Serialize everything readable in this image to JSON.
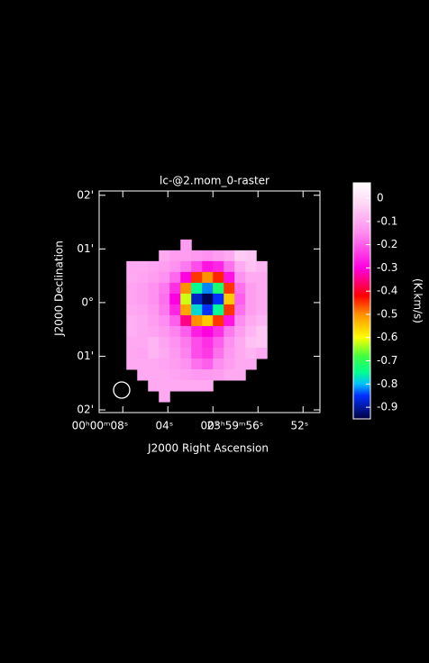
{
  "chart_data": {
    "type": "heatmap",
    "title": "lc-@2.mom_0-raster",
    "xlabel": "J2000 Right Ascension",
    "ylabel": "J2000 Declination",
    "colorbar_label": "(K.km/s)",
    "xlim": [
      10.1,
      -9.5
    ],
    "ylim": [
      -2.05,
      2.08
    ],
    "xticks": [
      {
        "value": 8,
        "label": "00ʰ00ᵐ08ˢ"
      },
      {
        "value": 4,
        "label": "04ˢ"
      },
      {
        "value": 0,
        "label": "00ˢ"
      },
      {
        "value": -4,
        "label": "23ʰ59ᵐ56ˢ"
      },
      {
        "value": -8,
        "label": "52ˢ"
      }
    ],
    "yticks": [
      {
        "value": 2,
        "label": "02'"
      },
      {
        "value": 1,
        "label": "01'"
      },
      {
        "value": 0,
        "label": "0°"
      },
      {
        "value": -1,
        "label": "01'"
      },
      {
        "value": -2,
        "label": "02'"
      }
    ],
    "extent": [
      8.64,
      -4.8,
      1.176,
      -1.849
    ],
    "clim": [
      -0.95,
      0.066
    ],
    "cticks": [
      0,
      -0.1,
      -0.2,
      -0.3,
      -0.4,
      -0.5,
      -0.6,
      -0.7,
      -0.8,
      -0.9
    ],
    "colormap": [
      [
        0.066,
        "#ffffff"
      ],
      [
        -0.02,
        "#ffd8f6"
      ],
      [
        -0.15,
        "#ff8cf0"
      ],
      [
        -0.3,
        "#ff00e0"
      ],
      [
        -0.38,
        "#ff0050"
      ],
      [
        -0.42,
        "#ff0000"
      ],
      [
        -0.5,
        "#ff9000"
      ],
      [
        -0.6,
        "#ffff00"
      ],
      [
        -0.68,
        "#40ff40"
      ],
      [
        -0.75,
        "#00ff90"
      ],
      [
        -0.8,
        "#00c0ff"
      ],
      [
        -0.85,
        "#0030ff"
      ],
      [
        -0.95,
        "#000040"
      ]
    ],
    "grid": [
      [
        null,
        null,
        null,
        null,
        null,
        null,
        -0.12,
        null,
        null,
        null,
        null,
        null,
        null,
        null
      ],
      [
        null,
        null,
        null,
        null,
        -0.1,
        -0.12,
        -0.12,
        -0.13,
        -0.14,
        -0.12,
        -0.1,
        -0.04,
        -0.05,
        null
      ],
      [
        null,
        -0.1,
        -0.1,
        -0.11,
        -0.12,
        -0.14,
        -0.17,
        -0.22,
        -0.28,
        -0.26,
        -0.18,
        -0.1,
        -0.06,
        -0.08
      ],
      [
        null,
        -0.1,
        -0.11,
        -0.12,
        -0.14,
        -0.19,
        -0.3,
        -0.45,
        -0.5,
        -0.44,
        -0.28,
        -0.14,
        -0.1,
        -0.1
      ],
      [
        null,
        -0.11,
        -0.12,
        -0.14,
        -0.17,
        -0.25,
        -0.5,
        -0.75,
        -0.82,
        -0.72,
        -0.45,
        -0.18,
        -0.12,
        -0.1
      ],
      [
        null,
        -0.11,
        -0.12,
        -0.14,
        -0.18,
        -0.3,
        -0.62,
        -0.88,
        -0.94,
        -0.85,
        -0.55,
        -0.2,
        -0.12,
        -0.1
      ],
      [
        null,
        -0.1,
        -0.11,
        -0.13,
        -0.17,
        -0.26,
        -0.52,
        -0.78,
        -0.85,
        -0.75,
        -0.45,
        -0.18,
        -0.12,
        -0.1
      ],
      [
        null,
        -0.09,
        -0.1,
        -0.12,
        -0.15,
        -0.2,
        -0.35,
        -0.5,
        -0.55,
        -0.45,
        -0.28,
        -0.15,
        -0.1,
        -0.08
      ],
      [
        null,
        -0.09,
        -0.1,
        -0.11,
        -0.13,
        -0.16,
        -0.2,
        -0.27,
        -0.3,
        -0.25,
        -0.17,
        -0.12,
        -0.08,
        -0.05
      ],
      [
        null,
        -0.1,
        -0.1,
        -0.08,
        -0.11,
        -0.14,
        -0.17,
        -0.22,
        -0.25,
        -0.2,
        -0.14,
        -0.1,
        -0.06,
        -0.05
      ],
      [
        null,
        -0.1,
        -0.11,
        -0.08,
        -0.1,
        -0.13,
        -0.16,
        -0.22,
        -0.24,
        -0.18,
        -0.13,
        -0.1,
        -0.08,
        -0.1
      ],
      [
        null,
        -0.1,
        -0.1,
        -0.1,
        -0.11,
        -0.12,
        -0.14,
        -0.18,
        -0.2,
        -0.15,
        -0.12,
        -0.1,
        -0.1,
        null
      ],
      [
        null,
        null,
        -0.1,
        -0.1,
        -0.1,
        -0.11,
        -0.12,
        -0.13,
        -0.13,
        -0.12,
        -0.1,
        -0.1,
        null,
        null
      ],
      [
        null,
        null,
        null,
        -0.1,
        -0.1,
        -0.1,
        -0.1,
        -0.1,
        -0.1,
        null,
        null,
        null,
        null,
        null
      ],
      [
        null,
        null,
        null,
        null,
        -0.1,
        null,
        null,
        null,
        null,
        null,
        null,
        null,
        null,
        null
      ]
    ]
  }
}
